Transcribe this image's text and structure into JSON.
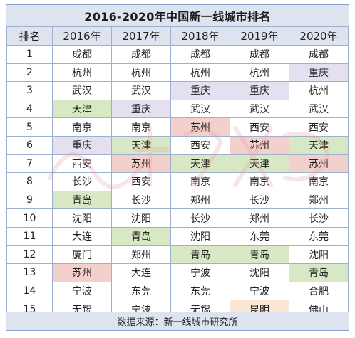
{
  "title": "2016-2020年中国新一线城市排名",
  "headers": [
    "排名",
    "2016年",
    "2017年",
    "2018年",
    "2019年",
    "2020年"
  ],
  "rows": [
    {
      "rank": "1",
      "cells": [
        {
          "city": "成都",
          "hl": ""
        },
        {
          "city": "成都",
          "hl": ""
        },
        {
          "city": "成都",
          "hl": ""
        },
        {
          "city": "成都",
          "hl": ""
        },
        {
          "city": "成都",
          "hl": ""
        }
      ]
    },
    {
      "rank": "2",
      "cells": [
        {
          "city": "杭州",
          "hl": ""
        },
        {
          "city": "杭州",
          "hl": ""
        },
        {
          "city": "杭州",
          "hl": ""
        },
        {
          "city": "杭州",
          "hl": ""
        },
        {
          "city": "重庆",
          "hl": "purple"
        }
      ]
    },
    {
      "rank": "3",
      "cells": [
        {
          "city": "武汉",
          "hl": ""
        },
        {
          "city": "武汉",
          "hl": ""
        },
        {
          "city": "重庆",
          "hl": "purple"
        },
        {
          "city": "重庆",
          "hl": "purple"
        },
        {
          "city": "杭州",
          "hl": ""
        }
      ]
    },
    {
      "rank": "4",
      "cells": [
        {
          "city": "天津",
          "hl": "green"
        },
        {
          "city": "重庆",
          "hl": "purple"
        },
        {
          "city": "武汉",
          "hl": ""
        },
        {
          "city": "武汉",
          "hl": ""
        },
        {
          "city": "武汉",
          "hl": ""
        }
      ]
    },
    {
      "rank": "5",
      "cells": [
        {
          "city": "南京",
          "hl": ""
        },
        {
          "city": "南京",
          "hl": ""
        },
        {
          "city": "苏州",
          "hl": "pink"
        },
        {
          "city": "西安",
          "hl": ""
        },
        {
          "city": "西安",
          "hl": ""
        }
      ]
    },
    {
      "rank": "6",
      "cells": [
        {
          "city": "重庆",
          "hl": "purple"
        },
        {
          "city": "天津",
          "hl": "green"
        },
        {
          "city": "西安",
          "hl": ""
        },
        {
          "city": "苏州",
          "hl": "pink"
        },
        {
          "city": "天津",
          "hl": "green"
        }
      ]
    },
    {
      "rank": "7",
      "cells": [
        {
          "city": "西安",
          "hl": ""
        },
        {
          "city": "苏州",
          "hl": "pink"
        },
        {
          "city": "天津",
          "hl": "green"
        },
        {
          "city": "天津",
          "hl": "green"
        },
        {
          "city": "苏州",
          "hl": "pink"
        }
      ]
    },
    {
      "rank": "8",
      "cells": [
        {
          "city": "长沙",
          "hl": ""
        },
        {
          "city": "西安",
          "hl": ""
        },
        {
          "city": "南京",
          "hl": ""
        },
        {
          "city": "南京",
          "hl": ""
        },
        {
          "city": "南京",
          "hl": ""
        }
      ]
    },
    {
      "rank": "9",
      "cells": [
        {
          "city": "青岛",
          "hl": "green"
        },
        {
          "city": "长沙",
          "hl": ""
        },
        {
          "city": "郑州",
          "hl": ""
        },
        {
          "city": "长沙",
          "hl": ""
        },
        {
          "city": "郑州",
          "hl": ""
        }
      ]
    },
    {
      "rank": "10",
      "cells": [
        {
          "city": "沈阳",
          "hl": ""
        },
        {
          "city": "沈阳",
          "hl": ""
        },
        {
          "city": "长沙",
          "hl": ""
        },
        {
          "city": "郑州",
          "hl": ""
        },
        {
          "city": "长沙",
          "hl": ""
        }
      ]
    },
    {
      "rank": "11",
      "cells": [
        {
          "city": "大连",
          "hl": ""
        },
        {
          "city": "青岛",
          "hl": "green"
        },
        {
          "city": "沈阳",
          "hl": ""
        },
        {
          "city": "东莞",
          "hl": ""
        },
        {
          "city": "东莞",
          "hl": ""
        }
      ]
    },
    {
      "rank": "12",
      "cells": [
        {
          "city": "厦门",
          "hl": ""
        },
        {
          "city": "郑州",
          "hl": ""
        },
        {
          "city": "青岛",
          "hl": "green"
        },
        {
          "city": "青岛",
          "hl": "green"
        },
        {
          "city": "沈阳",
          "hl": ""
        }
      ]
    },
    {
      "rank": "13",
      "cells": [
        {
          "city": "苏州",
          "hl": "pink"
        },
        {
          "city": "大连",
          "hl": ""
        },
        {
          "city": "宁波",
          "hl": ""
        },
        {
          "city": "沈阳",
          "hl": ""
        },
        {
          "city": "青岛",
          "hl": "green"
        }
      ]
    },
    {
      "rank": "14",
      "cells": [
        {
          "city": "宁波",
          "hl": ""
        },
        {
          "city": "东莞",
          "hl": ""
        },
        {
          "city": "东莞",
          "hl": ""
        },
        {
          "city": "宁波",
          "hl": ""
        },
        {
          "city": "合肥",
          "hl": ""
        }
      ]
    },
    {
      "rank": "15",
      "cells": [
        {
          "city": "无锡",
          "hl": ""
        },
        {
          "city": "宁波",
          "hl": ""
        },
        {
          "city": "无锡",
          "hl": ""
        },
        {
          "city": "昆明",
          "hl": "orange"
        },
        {
          "city": "佛山",
          "hl": ""
        }
      ]
    }
  ],
  "footer": "数据来源：新一线城市研究所",
  "colors": {
    "header_bg": "#dde3ef",
    "border": "#9eb0cf",
    "green": "#d8e8c4",
    "purple": "#e4e0f0",
    "pink": "#f4d0cc",
    "orange": "#fbe7d3"
  }
}
